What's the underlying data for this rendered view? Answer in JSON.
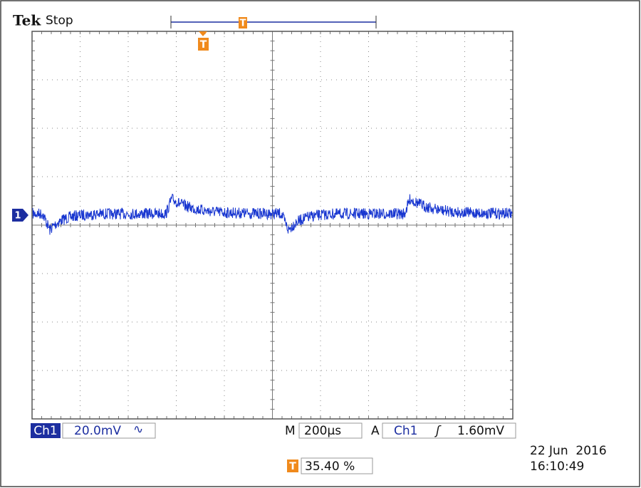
{
  "header": {
    "brand": "Tek",
    "status": "Stop"
  },
  "markers": {
    "channel": "1",
    "trigger": "T"
  },
  "status_bar": {
    "channel": "Ch1",
    "scale": "20.0mV",
    "coupling": "∿",
    "time_prefix": "M",
    "timebase": "200µs",
    "trigger_prefix": "A",
    "trigger_source": "Ch1",
    "trigger_slope": "ʃ",
    "trigger_level": "1.60mV"
  },
  "footer": {
    "trigger_position": "35.40 %",
    "date": "22 Jun  2016",
    "time": "16:10:49"
  }
}
